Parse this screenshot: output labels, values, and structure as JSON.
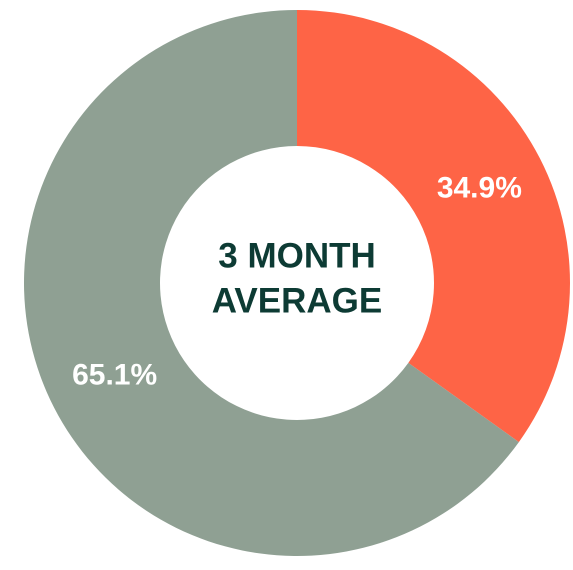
{
  "chart_data": {
    "type": "donut",
    "values": [
      34.9,
      65.1
    ],
    "value_labels": [
      "34.9%",
      "65.1%"
    ],
    "colors": [
      "#fe6446",
      "#8fa093"
    ],
    "center_text": [
      "3 MONTH",
      "AVERAGE"
    ]
  }
}
